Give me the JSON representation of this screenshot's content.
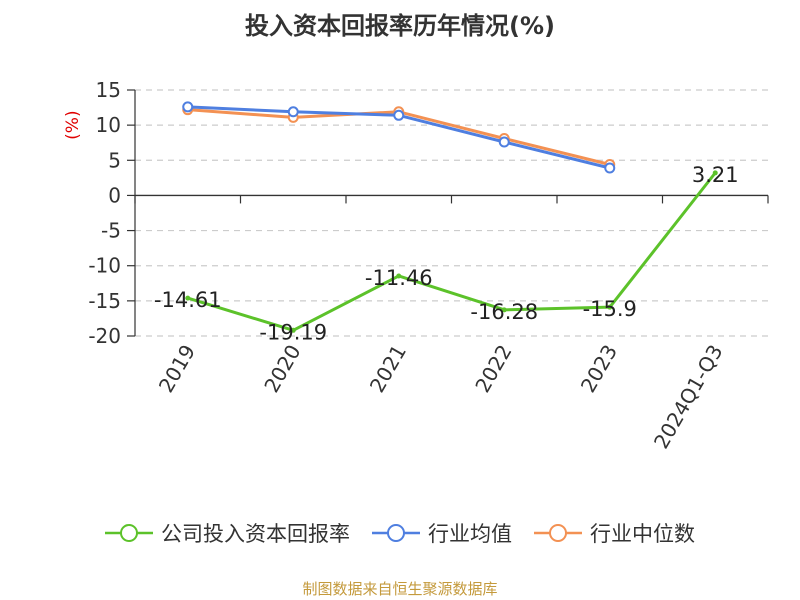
{
  "title": "投入资本回报率历年情况(%)",
  "source": "制图数据来自恒生聚源数据库",
  "colors": {
    "company": "#5cc22a",
    "avg": "#4f7fe0",
    "median": "#f39153",
    "grid": "#cccccc",
    "axis": "#333333",
    "unit": "#e00000"
  },
  "chart_data": {
    "type": "line",
    "categories": [
      "2019",
      "2020",
      "2021",
      "2022",
      "2023",
      "2024Q1-Q3"
    ],
    "ylabel": "(%)",
    "ylim": [
      -20,
      15
    ],
    "yticks": [
      15,
      10,
      5,
      0,
      -5,
      -10,
      -15,
      -20
    ],
    "grid": true,
    "legend_position": "bottom",
    "series": [
      {
        "name": "公司投入资本回报率",
        "key": "company",
        "values": [
          -14.61,
          -19.19,
          -11.46,
          -16.28,
          -15.9,
          3.21
        ],
        "labels": [
          "-14.61",
          "-19.19",
          "-11.46",
          "-16.28",
          "-15.9",
          "3.21"
        ]
      },
      {
        "name": "行业均值",
        "key": "avg",
        "values": [
          12.6,
          11.9,
          11.4,
          7.6,
          3.9,
          null
        ]
      },
      {
        "name": "行业中位数",
        "key": "median",
        "values": [
          12.2,
          11.1,
          11.9,
          8.1,
          4.4,
          null
        ]
      }
    ]
  }
}
